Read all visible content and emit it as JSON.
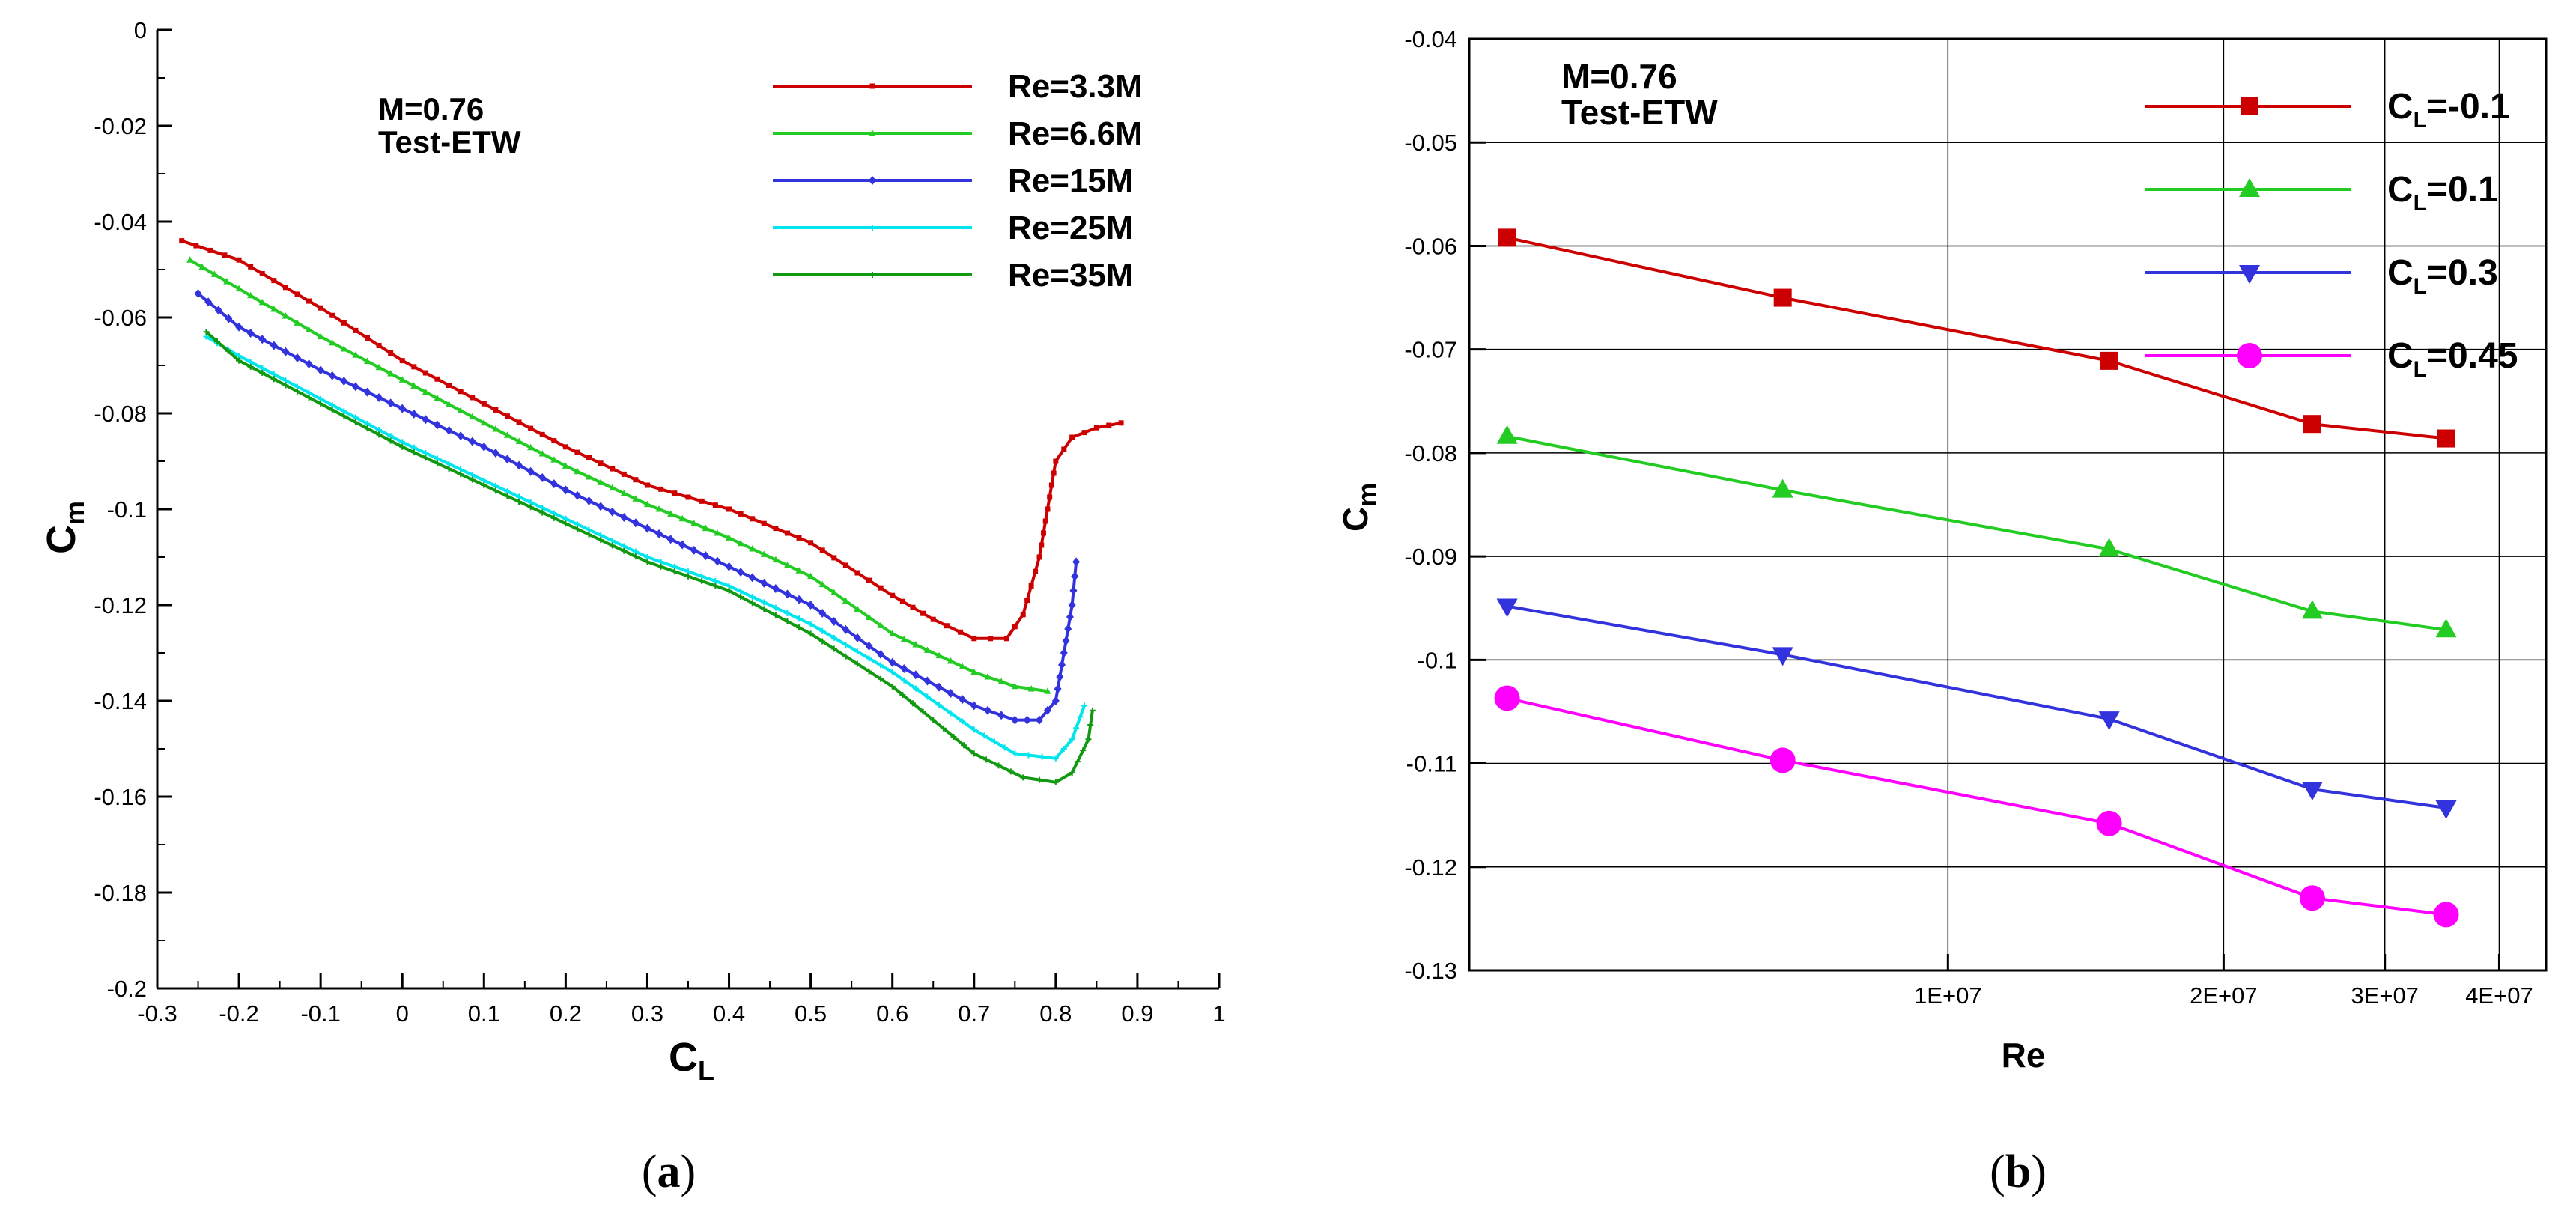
{
  "chart_data": [
    {
      "panel": "(a)",
      "panel_letter": "a",
      "type": "line",
      "xlabel_main": "C",
      "xlabel_sub": "L",
      "ylabel_main": "C",
      "ylabel_sub": "m",
      "xlim": [
        -0.3,
        1.0
      ],
      "ylim": [
        -0.2,
        0.0
      ],
      "x_ticks": [
        "-0.3",
        "-0.2",
        "-0.1",
        "0",
        "0.1",
        "0.2",
        "0.3",
        "0.4",
        "0.5",
        "0.6",
        "0.7",
        "0.8",
        "0.9",
        "1"
      ],
      "y_ticks": [
        "0",
        "-0.02",
        "-0.04",
        "-0.06",
        "-0.08",
        "-0.1",
        "-0.12",
        "-0.14",
        "-0.16",
        "-0.18",
        "-0.2"
      ],
      "annotation": [
        "M=0.76",
        "Test-ETW"
      ],
      "grid": false,
      "legend_position": "top-right",
      "series": [
        {
          "name": "Re=3.3M",
          "color": "#cc0000",
          "marker": "square-small",
          "x": [
            -0.27,
            -0.2,
            -0.1,
            0.0,
            0.1,
            0.2,
            0.3,
            0.4,
            0.5,
            0.6,
            0.65,
            0.7,
            0.74,
            0.76,
            0.78,
            0.79,
            0.8,
            0.82,
            0.85,
            0.88
          ],
          "y": [
            -0.044,
            -0.048,
            -0.058,
            -0.069,
            -0.078,
            -0.087,
            -0.095,
            -0.1,
            -0.107,
            -0.118,
            -0.123,
            -0.127,
            -0.127,
            -0.122,
            -0.11,
            -0.1,
            -0.09,
            -0.085,
            -0.083,
            -0.082
          ]
        },
        {
          "name": "Re=6.6M",
          "color": "#22cc22",
          "marker": "triangle-small",
          "x": [
            -0.26,
            -0.2,
            -0.1,
            0.0,
            0.1,
            0.2,
            0.3,
            0.4,
            0.5,
            0.6,
            0.7,
            0.75,
            0.79
          ],
          "y": [
            -0.048,
            -0.054,
            -0.064,
            -0.073,
            -0.082,
            -0.091,
            -0.099,
            -0.106,
            -0.114,
            -0.126,
            -0.134,
            -0.137,
            -0.138
          ]
        },
        {
          "name": "Re=15M",
          "color": "#3333dd",
          "marker": "diamond-small",
          "x": [
            -0.25,
            -0.2,
            -0.1,
            0.0,
            0.1,
            0.2,
            0.3,
            0.4,
            0.5,
            0.6,
            0.7,
            0.75,
            0.78,
            0.8,
            0.81,
            0.82,
            0.825
          ],
          "y": [
            -0.055,
            -0.062,
            -0.071,
            -0.079,
            -0.087,
            -0.096,
            -0.104,
            -0.112,
            -0.12,
            -0.132,
            -0.141,
            -0.144,
            -0.144,
            -0.14,
            -0.13,
            -0.12,
            -0.111
          ]
        },
        {
          "name": "Re=25M",
          "color": "#00e5ee",
          "marker": "plus-small",
          "x": [
            -0.24,
            -0.2,
            -0.1,
            0.0,
            0.1,
            0.2,
            0.3,
            0.4,
            0.5,
            0.6,
            0.7,
            0.75,
            0.8,
            0.82,
            0.835
          ],
          "y": [
            -0.064,
            -0.068,
            -0.077,
            -0.086,
            -0.094,
            -0.102,
            -0.11,
            -0.116,
            -0.124,
            -0.134,
            -0.146,
            -0.151,
            -0.152,
            -0.148,
            -0.141
          ]
        },
        {
          "name": "Re=35M",
          "color": "#119911",
          "marker": "plus-small",
          "x": [
            -0.24,
            -0.2,
            -0.1,
            0.0,
            0.1,
            0.2,
            0.3,
            0.4,
            0.5,
            0.6,
            0.7,
            0.76,
            0.8,
            0.82,
            0.84,
            0.845
          ],
          "y": [
            -0.063,
            -0.069,
            -0.078,
            -0.087,
            -0.095,
            -0.103,
            -0.111,
            -0.117,
            -0.126,
            -0.137,
            -0.151,
            -0.156,
            -0.157,
            -0.155,
            -0.148,
            -0.142
          ]
        }
      ]
    },
    {
      "panel": "(b)",
      "panel_letter": "b",
      "type": "line",
      "xscale": "log",
      "xlabel_main": "Re",
      "ylabel_main": "C",
      "ylabel_sub": "m",
      "xlim": [
        3000000,
        45000000
      ],
      "ylim": [
        -0.13,
        -0.04
      ],
      "x_ticks": [
        {
          "value": 10000000,
          "label": "1E+07"
        },
        {
          "value": 20000000,
          "label": "2E+07"
        },
        {
          "value": 30000000,
          "label": "3E+07"
        },
        {
          "value": 40000000,
          "label": "4E+07"
        }
      ],
      "x_grid": [
        10000000,
        20000000,
        30000000,
        40000000
      ],
      "y_ticks": [
        "-0.04",
        "-0.05",
        "-0.06",
        "-0.07",
        "-0.08",
        "-0.09",
        "-0.1",
        "-0.11",
        "-0.12",
        "-0.13"
      ],
      "annotation": [
        "M=0.76",
        "Test-ETW"
      ],
      "grid": true,
      "legend_position": "top-right",
      "x": [
        3300000,
        6600000,
        15000000,
        25000000,
        35000000
      ],
      "series": [
        {
          "name_main": "C",
          "name_sub": "L",
          "name_tail": "=-0.1",
          "color": "#cc0000",
          "marker": "square",
          "values": [
            -0.0592,
            -0.065,
            -0.0711,
            -0.0772,
            -0.0786
          ]
        },
        {
          "name_main": "C",
          "name_sub": "L",
          "name_tail": "=0.1",
          "color": "#22cc22",
          "marker": "triangle-up",
          "values": [
            -0.0784,
            -0.0836,
            -0.0893,
            -0.0953,
            -0.0971
          ]
        },
        {
          "name_main": "C",
          "name_sub": "L",
          "name_tail": "=0.3",
          "color": "#3333dd",
          "marker": "triangle-down",
          "values": [
            -0.0948,
            -0.0995,
            -0.1057,
            -0.1125,
            -0.1143
          ]
        },
        {
          "name_main": "C",
          "name_sub": "L",
          "name_tail": "=0.45",
          "color": "#ff00ff",
          "marker": "circle",
          "values": [
            -0.1037,
            -0.1097,
            -0.1158,
            -0.123,
            -0.1246
          ]
        }
      ]
    }
  ]
}
